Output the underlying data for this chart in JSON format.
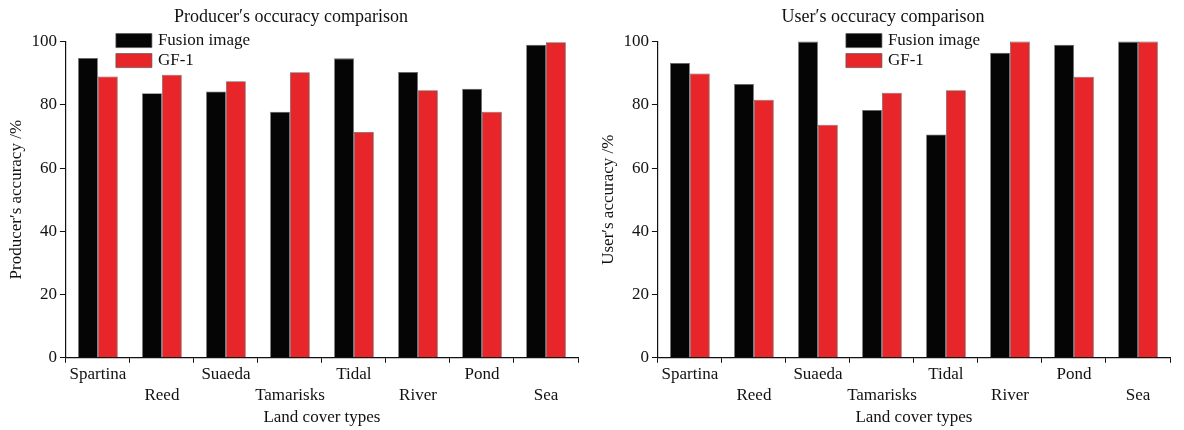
{
  "chart_data": [
    {
      "type": "bar",
      "title": "Producer′s occuracy comparison",
      "xlabel": "Land cover types",
      "ylabel": "Producer′s accuracy /%",
      "categories": [
        "Spartina",
        "Reed",
        "Suaeda",
        "Tamarisks",
        "Tidal",
        "River",
        "Pond",
        "Sea"
      ],
      "series": [
        {
          "name": "Fusion image",
          "color": "#050505",
          "values": [
            94.8,
            83.7,
            84.2,
            77.8,
            94.7,
            90.4,
            85.1,
            99.0
          ]
        },
        {
          "name": "GF-1",
          "color": "#e8262a",
          "values": [
            89.0,
            89.5,
            87.5,
            90.3,
            71.4,
            84.6,
            77.8,
            99.8
          ]
        }
      ],
      "ylim": [
        0,
        100
      ],
      "yticks": [
        0,
        20,
        40,
        60,
        80,
        100
      ],
      "grid": false,
      "legend": "top left"
    },
    {
      "type": "bar",
      "title": "User′s occuracy comparison",
      "xlabel": "Land cover types",
      "ylabel": "User′s accuracy /%",
      "categories": [
        "Spartina",
        "Reed",
        "Suaeda",
        "Tamarisks",
        "Tidal",
        "River",
        "Pond",
        "Sea"
      ],
      "series": [
        {
          "name": "Fusion image",
          "color": "#050505",
          "values": [
            93.2,
            86.6,
            100,
            78.4,
            70.6,
            96.5,
            99.0,
            100
          ]
        },
        {
          "name": "GF-1",
          "color": "#e8262a",
          "values": [
            89.9,
            81.6,
            73.7,
            83.8,
            84.6,
            100,
            88.9,
            100
          ]
        }
      ],
      "ylim": [
        0,
        100
      ],
      "yticks": [
        0,
        20,
        40,
        60,
        80,
        100
      ],
      "grid": false,
      "legend": "top"
    }
  ]
}
